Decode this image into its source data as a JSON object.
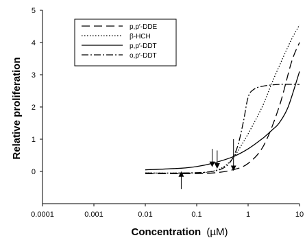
{
  "chart_data": {
    "type": "line",
    "title": "",
    "xlabel": "Concentration",
    "xlabel_unit": "(µM)",
    "ylabel": "Relative proliferation",
    "x_scale": "log",
    "xlim": [
      0.0001,
      10
    ],
    "ylim": [
      -1,
      5
    ],
    "xticks": [
      {
        "value": 0.0001,
        "label": "0.0001"
      },
      {
        "value": 0.001,
        "label": "0.001"
      },
      {
        "value": 0.01,
        "label": "0.01"
      },
      {
        "value": 0.1,
        "label": "0.1"
      },
      {
        "value": 1,
        "label": "1"
      },
      {
        "value": 10,
        "label": "10"
      }
    ],
    "yticks": [
      {
        "value": 0,
        "label": "0"
      },
      {
        "value": 1,
        "label": "1"
      },
      {
        "value": 2,
        "label": "2"
      },
      {
        "value": 3,
        "label": "3"
      },
      {
        "value": 4,
        "label": "4"
      },
      {
        "value": 5,
        "label": "5"
      }
    ],
    "grid": false,
    "legend_position": "top-left",
    "series": [
      {
        "name": "p,p′-DDE",
        "style": "long-dash",
        "x": [
          0.01,
          0.05,
          0.2,
          0.5,
          1,
          2,
          4,
          7,
          10
        ],
        "y": [
          -0.07,
          -0.07,
          -0.05,
          0.05,
          0.25,
          0.8,
          2.0,
          3.4,
          4.0
        ]
      },
      {
        "name": "β-HCH",
        "style": "dotted",
        "x": [
          0.01,
          0.05,
          0.15,
          0.3,
          0.5,
          0.8,
          1.3,
          2,
          3,
          5,
          7,
          10
        ],
        "y": [
          -0.05,
          -0.05,
          -0.03,
          0.1,
          0.4,
          0.9,
          1.5,
          2.1,
          2.8,
          3.6,
          4.1,
          4.55
        ]
      },
      {
        "name": "p,p′-DDT",
        "style": "solid",
        "x": [
          0.01,
          0.05,
          0.1,
          0.2,
          0.5,
          1,
          2,
          3,
          4,
          6,
          10
        ],
        "y": [
          0.05,
          0.1,
          0.15,
          0.25,
          0.45,
          0.7,
          1.05,
          1.3,
          1.5,
          2.0,
          3.1
        ]
      },
      {
        "name": "o,p′-DDT",
        "style": "dash-dot",
        "x": [
          0.01,
          0.05,
          0.2,
          0.4,
          0.6,
          0.8,
          1,
          1.3,
          2,
          4,
          10
        ],
        "y": [
          -0.05,
          -0.05,
          0.0,
          0.2,
          0.7,
          1.5,
          2.3,
          2.55,
          2.65,
          2.7,
          2.7
        ]
      }
    ],
    "annotations": [
      {
        "type": "arrow-up",
        "x": 0.05,
        "y_from": -0.55,
        "y_to": -0.08
      },
      {
        "type": "arrow-down",
        "x": 0.2,
        "y_from": 0.7,
        "y_to": 0.22
      },
      {
        "type": "arrow-down",
        "x": 0.25,
        "y_from": 0.65,
        "y_to": 0.17
      },
      {
        "type": "arrow-down",
        "x": 0.52,
        "y_from": 1.0,
        "y_to": 0.1
      }
    ]
  }
}
